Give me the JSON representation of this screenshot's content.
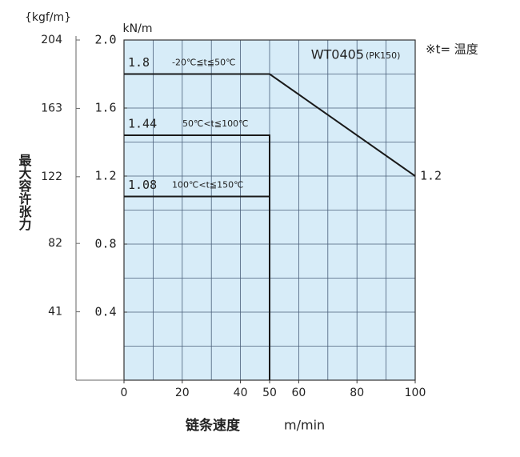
{
  "chart_data": {
    "type": "line",
    "y2_title": "{kgf/m}",
    "y_title": "kN/m",
    "axis_title": "最大容许张力",
    "x_title": "链条速度",
    "x_unit": "m/min",
    "model": "WT0405",
    "model_sub": "(PK150)",
    "note": "※t= 温度",
    "xlim": [
      0,
      100
    ],
    "xticks": [
      0,
      20,
      40,
      50,
      60,
      80,
      100
    ],
    "x_grid_step": 10,
    "ylim": [
      0,
      2
    ],
    "yticks": [
      {
        "value": 2,
        "label": "2.0"
      },
      1.6,
      1.2,
      0.8,
      0.4
    ],
    "y_grid_step": 0.2,
    "y2lim": [
      0,
      204
    ],
    "y2ticks": [
      204,
      163,
      122,
      82,
      41
    ],
    "grid": true,
    "background": "#d7ecf8",
    "series": [
      {
        "name": "-20℃≦t≦50℃",
        "color": "#1a1a1a",
        "x": [
          0,
          50,
          100
        ],
        "values": [
          1.8,
          1.8,
          1.2
        ]
      },
      {
        "name": "50℃<t≦100℃",
        "color": "#1a1a1a",
        "x": [
          0,
          50,
          50
        ],
        "values": [
          1.44,
          1.44,
          0
        ]
      },
      {
        "name": "100℃<t≦150℃",
        "color": "#1a1a1a",
        "x": [
          0,
          50,
          50
        ],
        "values": [
          1.08,
          1.08,
          0
        ]
      }
    ]
  }
}
